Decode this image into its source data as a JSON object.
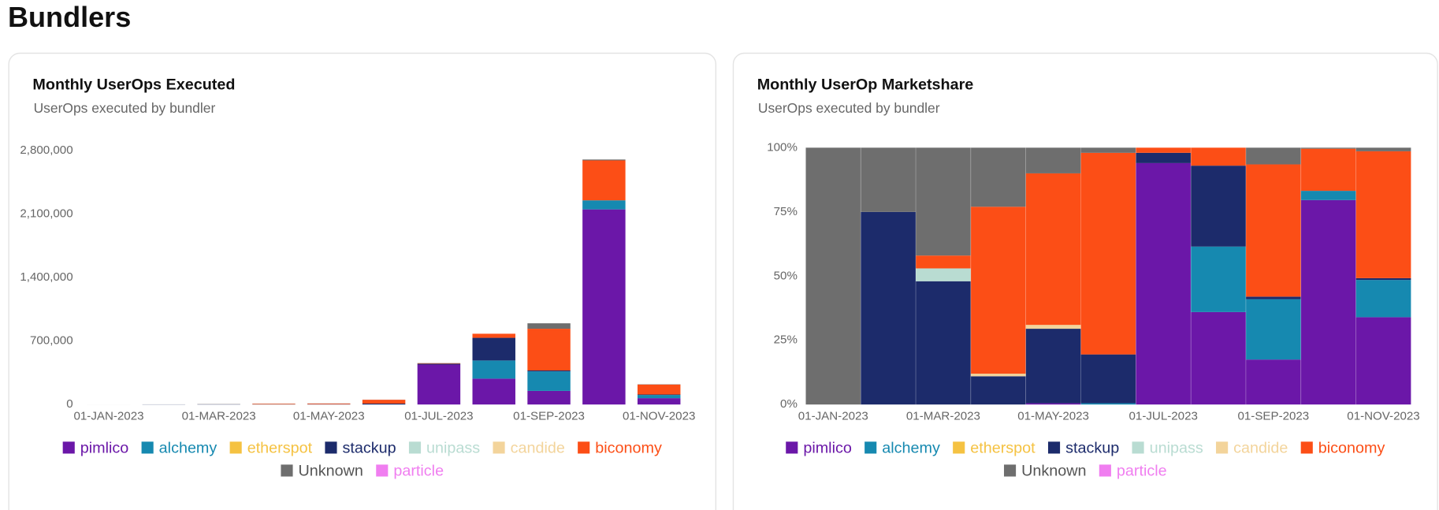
{
  "page_title": "Bundlers",
  "chart_data": [
    {
      "type": "bar",
      "stacked": true,
      "title": "Monthly UserOps Executed",
      "subtitle": "UserOps executed by bundler",
      "categories": [
        "01-JAN-2023",
        null,
        "01-MAR-2023",
        null,
        "01-MAY-2023",
        null,
        "01-JUL-2023",
        null,
        "01-SEP-2023",
        null,
        "01-NOV-2023"
      ],
      "series": [
        {
          "name": "pimlico",
          "color": "#6b17a8",
          "values": [
            0,
            0,
            0,
            0,
            200,
            0,
            440000,
            285000,
            150000,
            2150000,
            70000
          ]
        },
        {
          "name": "alchemy",
          "color": "#1689b0",
          "values": [
            0,
            0,
            0,
            0,
            0,
            300,
            0,
            200000,
            215000,
            100000,
            35000
          ]
        },
        {
          "name": "etherspot",
          "color": "#f5c242",
          "values": [
            0,
            0,
            0,
            0,
            0,
            0,
            0,
            0,
            0,
            0,
            0
          ]
        },
        {
          "name": "stackup",
          "color": "#1c2b6b",
          "values": [
            0,
            1500,
            2500,
            1100,
            3500,
            10000,
            10000,
            250000,
            10000,
            0,
            5000
          ]
        },
        {
          "name": "unipass",
          "color": "#b9dcd2",
          "values": [
            0,
            0,
            250,
            0,
            0,
            0,
            0,
            0,
            0,
            0,
            0
          ]
        },
        {
          "name": "candide",
          "color": "#f3d49b",
          "values": [
            0,
            0,
            0,
            100,
            200,
            0,
            0,
            0,
            0,
            0,
            0
          ]
        },
        {
          "name": "biconomy",
          "color": "#fc4e16",
          "values": [
            0,
            0,
            250,
            6500,
            7000,
            42000,
            5000,
            45000,
            460000,
            440000,
            110000
          ]
        },
        {
          "name": "Unknown",
          "color": "#6e6e6e",
          "values": [
            200,
            500,
            2000,
            2300,
            1200,
            1000,
            2000,
            0,
            60000,
            10000,
            3000
          ]
        },
        {
          "name": "particle",
          "color": "#f07ef0",
          "values": [
            0,
            0,
            0,
            0,
            0,
            0,
            0,
            0,
            0,
            0,
            0
          ]
        }
      ],
      "ylim": [
        0,
        2800000
      ],
      "yticks": [
        0,
        {
          "value": 700000,
          "label": "700,000"
        },
        {
          "value": 1400000,
          "label": "1,400,000"
        },
        {
          "value": 2100000,
          "label": "2,100,000"
        },
        {
          "value": 2800000,
          "label": "2,800,000"
        }
      ],
      "grid": false,
      "bar_gap": true,
      "legend": "bottom"
    },
    {
      "type": "bar",
      "stacked": true,
      "title": "Monthly UserOp Marketshare",
      "subtitle": "UserOps executed by bundler",
      "categories": [
        "01-JAN-2023",
        null,
        "01-MAR-2023",
        null,
        "01-MAY-2023",
        null,
        "01-JUL-2023",
        null,
        "01-SEP-2023",
        null,
        "01-NOV-2023"
      ],
      "series": [
        {
          "name": "pimlico",
          "color": "#6b17a8",
          "values": [
            0,
            0,
            0,
            0,
            0.5,
            0,
            94,
            36,
            17.5,
            79.6,
            34
          ]
        },
        {
          "name": "alchemy",
          "color": "#1689b0",
          "values": [
            0,
            0,
            0,
            0,
            0,
            0.5,
            0,
            25.5,
            23.5,
            3.6,
            14.5
          ]
        },
        {
          "name": "etherspot",
          "color": "#f5c242",
          "values": [
            0,
            0,
            0,
            0,
            0,
            0,
            0,
            0,
            0,
            0,
            0
          ]
        },
        {
          "name": "stackup",
          "color": "#1c2b6b",
          "values": [
            0,
            75,
            48,
            11,
            29,
            19,
            4,
            31.5,
            1,
            0,
            0.7
          ]
        },
        {
          "name": "unipass",
          "color": "#b9dcd2",
          "values": [
            0,
            0,
            5,
            0,
            0,
            0,
            0,
            0,
            0,
            0,
            0
          ]
        },
        {
          "name": "candide",
          "color": "#f3d49b",
          "values": [
            0,
            0,
            0,
            1,
            1.5,
            0,
            0,
            0,
            0,
            0,
            0
          ]
        },
        {
          "name": "biconomy",
          "color": "#fc4e16",
          "values": [
            0,
            0,
            5,
            65,
            59,
            78.5,
            2,
            7,
            51.5,
            16.4,
            49.4
          ]
        },
        {
          "name": "Unknown",
          "color": "#6e6e6e",
          "values": [
            100,
            25,
            42,
            23,
            10,
            2,
            0,
            0,
            6.5,
            0.4,
            1.4
          ]
        },
        {
          "name": "particle",
          "color": "#f07ef0",
          "values": [
            0,
            0,
            0,
            0,
            0,
            0,
            0,
            0,
            0,
            0,
            0
          ]
        }
      ],
      "ylim": [
        0,
        100
      ],
      "yticks": [
        {
          "value": 0,
          "label": "0%"
        },
        {
          "value": 25,
          "label": "25%"
        },
        {
          "value": 50,
          "label": "50%"
        },
        {
          "value": 75,
          "label": "75%"
        },
        {
          "value": 100,
          "label": "100%"
        }
      ],
      "grid": false,
      "bar_gap": false,
      "legend": "bottom"
    }
  ]
}
